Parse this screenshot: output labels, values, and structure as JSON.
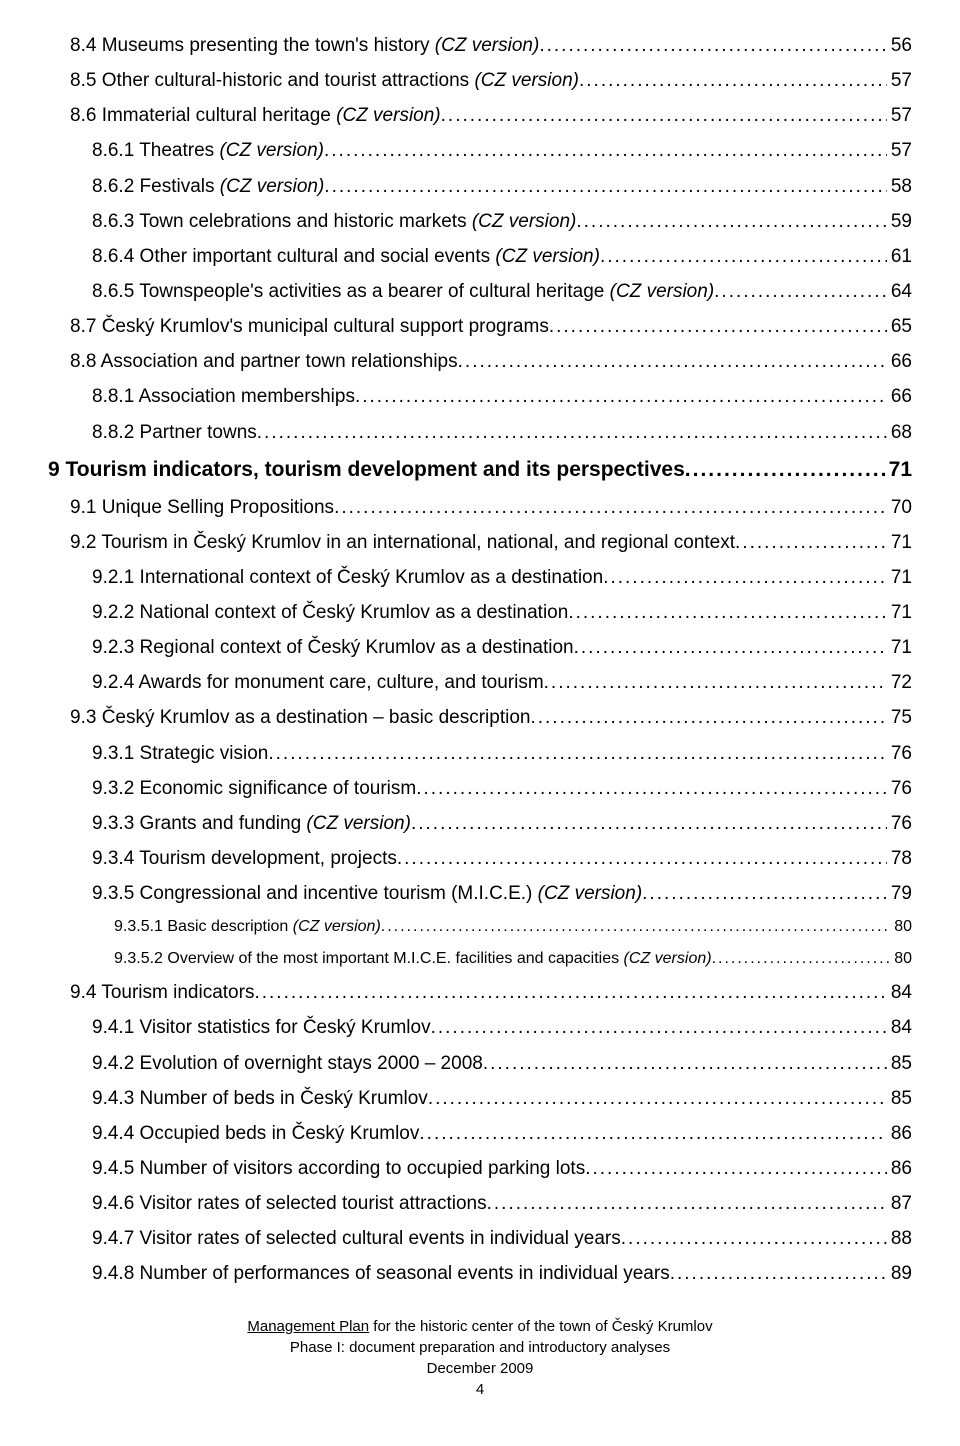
{
  "toc": [
    {
      "level": 1,
      "label": "8.4 Museums presenting the town's history",
      "italicSuffix": " (CZ version)",
      "page": "56"
    },
    {
      "level": 1,
      "label": "8.5 Other cultural-historic and tourist attractions",
      "italicSuffix": " (CZ version)",
      "page": "57"
    },
    {
      "level": 1,
      "label": "8.6 Immaterial cultural heritage",
      "italicSuffix": " (CZ version)",
      "page": "57"
    },
    {
      "level": 2,
      "label": "8.6.1 Theatres",
      "italicSuffix": " (CZ version)",
      "page": "57"
    },
    {
      "level": 2,
      "label": "8.6.2 Festivals",
      "italicSuffix": " (CZ version)",
      "page": "58"
    },
    {
      "level": 2,
      "label": "8.6.3 Town celebrations and historic markets",
      "italicSuffix": " (CZ version)",
      "page": "59"
    },
    {
      "level": 2,
      "label": "8.6.4 Other important cultural and social events",
      "italicSuffix": " (CZ version)",
      "page": "61"
    },
    {
      "level": 2,
      "label": "8.6.5 Townspeople's activities as a bearer of cultural heritage",
      "italicSuffix": " (CZ version)",
      "page": "64"
    },
    {
      "level": 1,
      "label": "8.7 Český Krumlov's municipal cultural support programs",
      "italicSuffix": "",
      "page": "65"
    },
    {
      "level": 1,
      "label": "8.8 Association and partner town relationships",
      "italicSuffix": "",
      "page": "66"
    },
    {
      "level": 2,
      "label": "8.8.1 Association memberships",
      "italicSuffix": "",
      "page": "66"
    },
    {
      "level": 2,
      "label": "8.8.2 Partner towns",
      "italicSuffix": "",
      "page": "68"
    },
    {
      "level": 0,
      "label": "9 Tourism indicators, tourism development and its perspectives",
      "italicSuffix": "",
      "page": "71"
    },
    {
      "level": 1,
      "label": "9.1 Unique Selling Propositions",
      "italicSuffix": "",
      "page": "70"
    },
    {
      "level": 1,
      "label": "9.2 Tourism in Český Krumlov in an international, national, and regional context",
      "italicSuffix": "",
      "page": "71"
    },
    {
      "level": 2,
      "label": "9.2.1 International context of Český Krumlov as a destination",
      "italicSuffix": "",
      "page": "71"
    },
    {
      "level": 2,
      "label": "9.2.2 National context of Český Krumlov as a destination",
      "italicSuffix": "",
      "page": "71"
    },
    {
      "level": 2,
      "label": "9.2.3 Regional context of Český Krumlov as a destination",
      "italicSuffix": "",
      "page": "71"
    },
    {
      "level": 2,
      "label": "9.2.4 Awards for monument care, culture, and tourism",
      "italicSuffix": "",
      "page": "72"
    },
    {
      "level": 1,
      "label": "9.3 Český Krumlov as a destination – basic description",
      "italicSuffix": "",
      "page": "75"
    },
    {
      "level": 2,
      "label": "9.3.1 Strategic vision",
      "italicSuffix": "",
      "page": "76"
    },
    {
      "level": 2,
      "label": "9.3.2 Economic significance of tourism",
      "italicSuffix": "",
      "page": "76"
    },
    {
      "level": 2,
      "label": "9.3.3 Grants and funding",
      "italicSuffix": " (CZ version)",
      "page": "76"
    },
    {
      "level": 2,
      "label": "9.3.4 Tourism development, projects",
      "italicSuffix": "",
      "page": "78"
    },
    {
      "level": 2,
      "label": "9.3.5 Congressional and incentive tourism (M.I.C.E.)",
      "italicSuffix": " (CZ version)",
      "page": "79"
    },
    {
      "level": 3,
      "label": "9.3.5.1 Basic description",
      "italicSuffix": " (CZ version)",
      "page": "80"
    },
    {
      "level": 3,
      "label": "9.3.5.2 Overview of the most important M.I.C.E. facilities and capacities",
      "italicSuffix": " (CZ version)",
      "page": "80"
    },
    {
      "level": 1,
      "label": "9.4 Tourism indicators",
      "italicSuffix": "",
      "page": "84"
    },
    {
      "level": 2,
      "label": "9.4.1 Visitor statistics for Český Krumlov",
      "italicSuffix": "",
      "page": "84"
    },
    {
      "level": 2,
      "label": "9.4.2 Evolution of overnight stays 2000 – 2008",
      "italicSuffix": "",
      "page": "85"
    },
    {
      "level": 2,
      "label": "9.4.3 Number of beds in Český Krumlov",
      "italicSuffix": "",
      "page": "85"
    },
    {
      "level": 2,
      "label": "9.4.4 Occupied beds in Český Krumlov",
      "italicSuffix": "",
      "page": "86"
    },
    {
      "level": 2,
      "label": "9.4.5 Number of visitors according to occupied parking lots",
      "italicSuffix": "",
      "page": "86"
    },
    {
      "level": 2,
      "label": "9.4.6 Visitor rates of selected tourist attractions",
      "italicSuffix": "",
      "page": "87"
    },
    {
      "level": 2,
      "label": "9.4.7 Visitor rates of selected cultural events in individual years",
      "italicSuffix": "",
      "page": "88"
    },
    {
      "level": 2,
      "label": "9.4.8 Number of performances of seasonal events in individual years",
      "italicSuffix": "",
      "page": "89"
    }
  ],
  "footer": {
    "line1_underlined": "Management Plan",
    "line1_rest": " for the historic center of the town of Český Krumlov",
    "line2": "Phase I: document preparation and introductory analyses",
    "line3": "December 2009",
    "pagenum": "4"
  }
}
